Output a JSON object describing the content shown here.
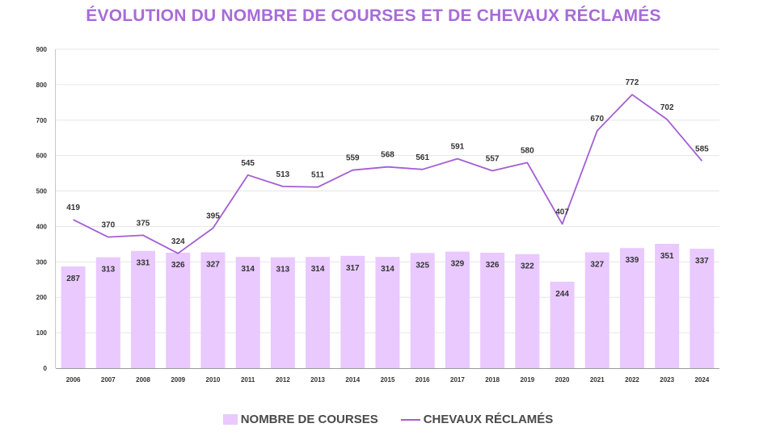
{
  "colors": {
    "title": "#a86bd8",
    "bar": "#e9c9ff",
    "line": "#a45ed4",
    "grid": "#e6e6e6",
    "axis": "#c8c8c8",
    "label": "#333333"
  },
  "chart_data": {
    "type": "bar+line",
    "title": "ÉVOLUTION DU NOMBRE DE COURSES ET DE CHEVAUX RÉCLAMÉS",
    "categories": [
      "2006",
      "2007",
      "2008",
      "2009",
      "2010",
      "2011",
      "2012",
      "2013",
      "2014",
      "2015",
      "2016",
      "2017",
      "2018",
      "2019",
      "2020",
      "2021",
      "2022",
      "2023",
      "2024"
    ],
    "series": [
      {
        "name": "NOMBRE DE COURSES",
        "type": "bar",
        "values": [
          287,
          313,
          331,
          326,
          327,
          314,
          313,
          314,
          317,
          314,
          325,
          329,
          326,
          322,
          244,
          327,
          339,
          351,
          337
        ]
      },
      {
        "name": "CHEVAUX RÉCLAMÉS",
        "type": "line",
        "values": [
          419,
          370,
          375,
          324,
          395,
          545,
          513,
          511,
          559,
          568,
          561,
          591,
          557,
          580,
          407,
          670,
          772,
          702,
          585
        ]
      }
    ],
    "yticks": [
      0,
      100,
      200,
      300,
      400,
      500,
      600,
      700,
      800,
      900
    ],
    "ylim": [
      0,
      900
    ],
    "grid": true,
    "legend_position": "bottom-center"
  }
}
